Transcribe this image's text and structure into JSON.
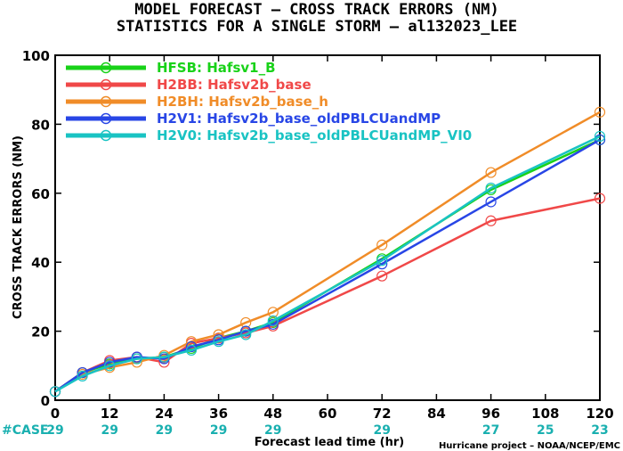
{
  "chart_data": {
    "type": "line",
    "title_lines": [
      "MODEL FORECAST – CROSS TRACK ERRORS (NM)",
      "STATISTICS FOR A SINGLE STORM – al132023_LEE"
    ],
    "xlabel": "Forecast lead time (hr)",
    "ylabel": "CROSS TRACK ERRORS (NM)",
    "xlim": [
      0,
      120
    ],
    "ylim": [
      0,
      100
    ],
    "x_ticks": [
      0,
      12,
      24,
      36,
      48,
      60,
      72,
      84,
      96,
      108,
      120
    ],
    "y_ticks": [
      0,
      20,
      40,
      60,
      80,
      100
    ],
    "grid": false,
    "legend_position": "top-left",
    "case_label": "#CASE",
    "case_color": "#1ab0b0",
    "cases": [
      {
        "x": 0,
        "n": "29"
      },
      {
        "x": 12,
        "n": "29"
      },
      {
        "x": 24,
        "n": "29"
      },
      {
        "x": 36,
        "n": "29"
      },
      {
        "x": 48,
        "n": "29"
      },
      {
        "x": 72,
        "n": "29"
      },
      {
        "x": 96,
        "n": "27"
      },
      {
        "x": 108,
        "n": "25"
      },
      {
        "x": 120,
        "n": "23"
      }
    ],
    "credit": "Hurricane project – NOAA/NCEP/EMC",
    "x": [
      0,
      6,
      12,
      18,
      24,
      30,
      36,
      42,
      48,
      72,
      96,
      120
    ],
    "series": [
      {
        "name": "HFSB: Hafsv1_B",
        "color": "#19d219",
        "values": [
          2.5,
          8,
          10.5,
          12,
          12.5,
          15,
          18,
          20,
          22.5,
          41,
          61,
          75.5
        ]
      },
      {
        "name": "H2BB: Hafsv2b_base",
        "color": "#f04848",
        "values": [
          2.5,
          8,
          11.5,
          12.5,
          11,
          16.5,
          18,
          19.5,
          21.5,
          36,
          52,
          58.5
        ]
      },
      {
        "name": "H2BH: Hafsv2b_base_h",
        "color": "#f08c28",
        "values": [
          2.5,
          7.5,
          9.5,
          11,
          13,
          17,
          19,
          22.5,
          25.5,
          45,
          66,
          83.5
        ]
      },
      {
        "name": "H2V1: Hafsv2b_base_oldPBLCUandMP",
        "color": "#2846e6",
        "values": [
          2.5,
          8,
          11,
          12.5,
          12,
          15.5,
          17.5,
          20,
          22,
          39.5,
          57.5,
          75.5
        ]
      },
      {
        "name": "H2V0: Hafsv2b_base_oldPBLCUandMP_VI0",
        "color": "#19c3c3",
        "values": [
          2.5,
          7,
          10,
          12,
          12.5,
          14.5,
          17,
          19,
          23,
          40.5,
          61.5,
          76.5
        ]
      }
    ]
  }
}
